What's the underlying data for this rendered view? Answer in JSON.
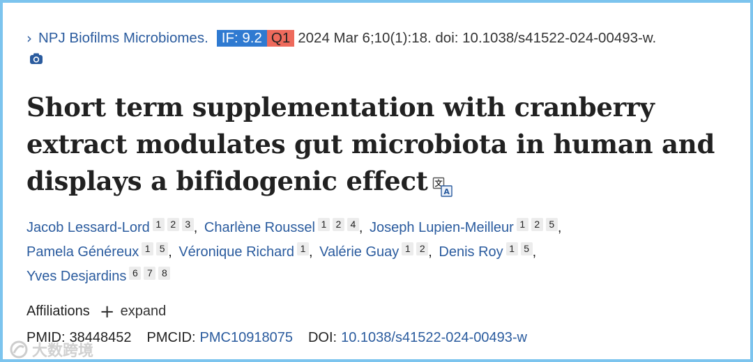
{
  "journal": {
    "chevron": "›",
    "name": "NPJ Biofilms Microbiomes.",
    "if_badge": "IF: 9.2",
    "quartile_badge": "Q1",
    "citation": "2024 Mar 6;10(1):18. doi: 10.1038/s41522-024-00493-w.",
    "colors": {
      "if_badge": "#2f7ad1",
      "quartile_badge": "#ee6a5c",
      "link": "#2a5b9e"
    }
  },
  "camera_icon": "camera-icon",
  "title": "Short term supplementation with cranberry extract modulates gut microbiota in human and displays a bifidogenic effect",
  "translate_icon": "translate-icon",
  "authors": [
    {
      "name": "Jacob Lessard-Lord",
      "affiliations": [
        "1",
        "2",
        "3"
      ]
    },
    {
      "name": "Charlène Roussel",
      "affiliations": [
        "1",
        "2",
        "4"
      ]
    },
    {
      "name": "Joseph Lupien-Meilleur",
      "affiliations": [
        "1",
        "2",
        "5"
      ]
    },
    {
      "name": "Pamela Généreux",
      "affiliations": [
        "1",
        "5"
      ]
    },
    {
      "name": "Véronique Richard",
      "affiliations": [
        "1"
      ]
    },
    {
      "name": "Valérie Guay",
      "affiliations": [
        "1",
        "2"
      ]
    },
    {
      "name": "Denis Roy",
      "affiliations": [
        "1",
        "5"
      ]
    },
    {
      "name": "Yves Desjardins",
      "affiliations": [
        "6",
        "7",
        "8"
      ]
    }
  ],
  "author_separator": ",",
  "affiliations": {
    "label": "Affiliations",
    "plus": "+",
    "expand": "expand"
  },
  "identifiers": {
    "pmid_label": "PMID:",
    "pmid": "38448452",
    "pmcid_label": "PMCID:",
    "pmcid": "PMC10918075",
    "doi_label": "DOI:",
    "doi": "10.1038/s41522-024-00493-w"
  },
  "watermark": {
    "text": "大数跨境",
    "icon": "watermark-logo-icon"
  }
}
